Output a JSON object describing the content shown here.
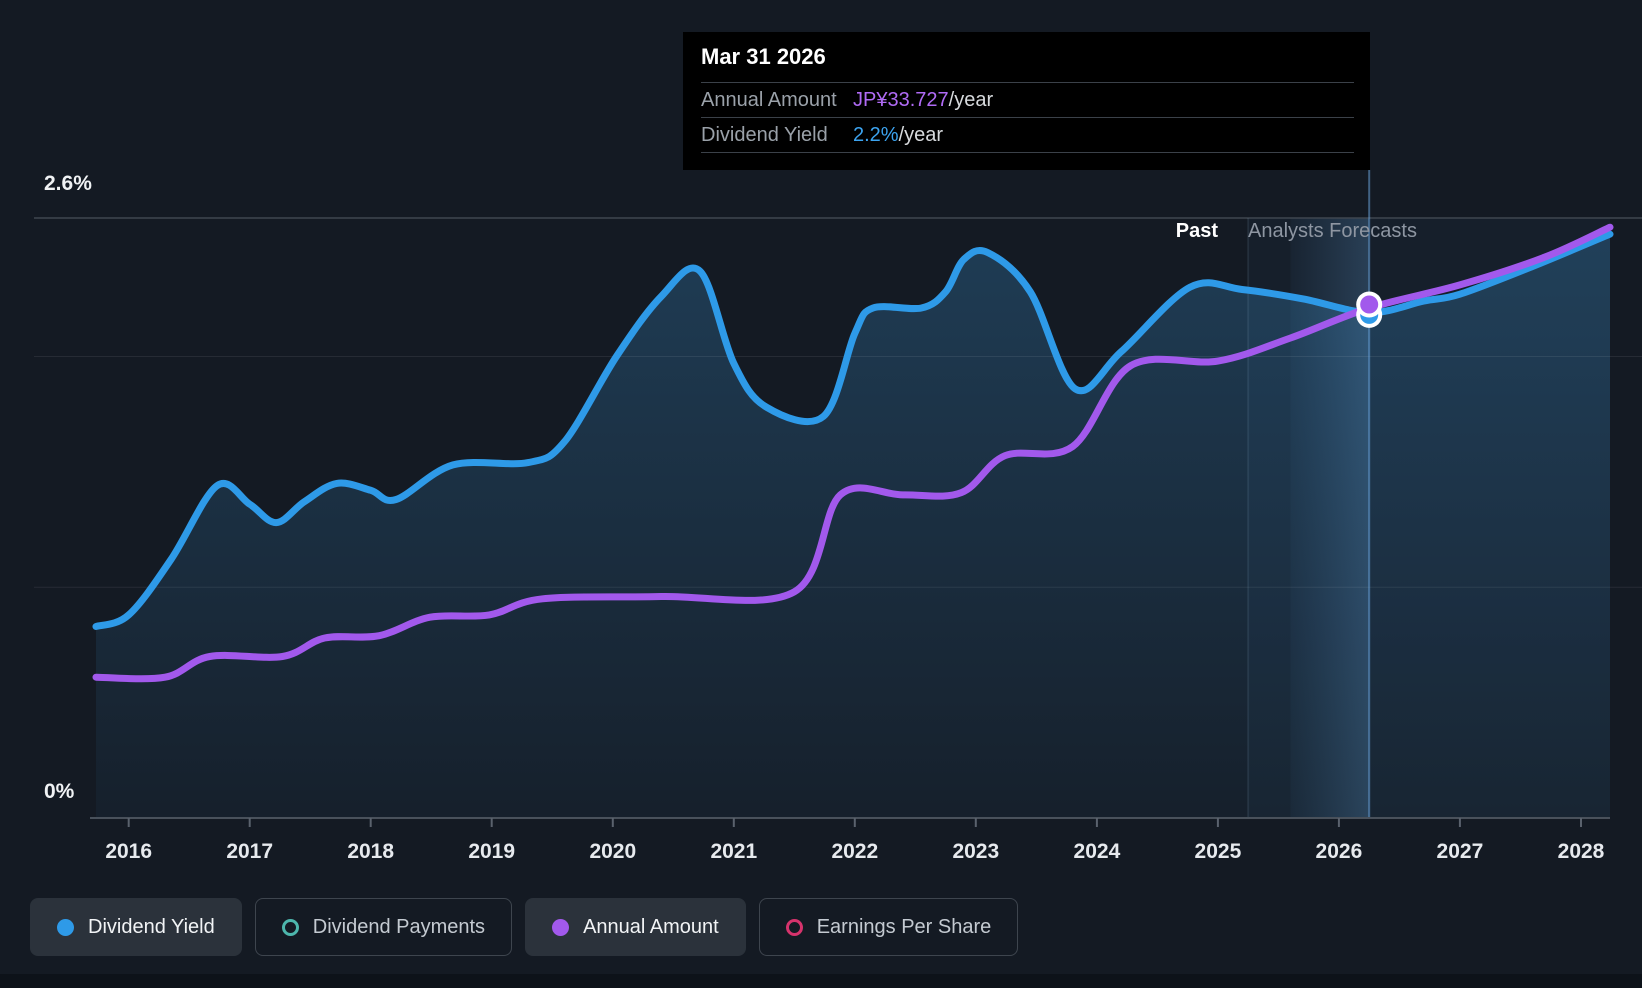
{
  "tooltip": {
    "title": "Mar 31 2026",
    "rows": [
      {
        "label": "Annual Amount",
        "value": "JP¥33.727",
        "suffix": "/year",
        "color": "#b06bf5"
      },
      {
        "label": "Dividend Yield",
        "value": "2.2%",
        "suffix": "/year",
        "color": "#3ca3ef"
      }
    ]
  },
  "annotations": {
    "past_label": "Past",
    "forecast_label": "Analysts Forecasts"
  },
  "legend": [
    {
      "label": "Dividend Yield",
      "color": "#2e9ae8",
      "marker": "filled",
      "active": true
    },
    {
      "label": "Dividend Payments",
      "color": "#4db6ac",
      "marker": "outline",
      "active": false
    },
    {
      "label": "Annual Amount",
      "color": "#a259ec",
      "marker": "filled",
      "active": true
    },
    {
      "label": "Earnings Per Share",
      "color": "#d6336c",
      "marker": "outline",
      "active": false
    }
  ],
  "colors": {
    "background": "#141a23",
    "dividend_yield_line": "#2e9ae8",
    "annual_amount_line": "#a259ec",
    "tooltip_bg": "#000000",
    "grid": "#3f4650"
  },
  "chart_data": {
    "type": "area",
    "title": "Dividend yield history and forecast",
    "xlim": [
      2015.73,
      2028.24
    ],
    "ylim": [
      0,
      2.6
    ],
    "xticks": [
      2016,
      2017,
      2018,
      2019,
      2020,
      2021,
      2022,
      2023,
      2024,
      2025,
      2026,
      2027,
      2028
    ],
    "ytick_labels": [
      {
        "value": 2.6,
        "label": "2.6%"
      },
      {
        "value": 0,
        "label": "0%"
      }
    ],
    "minor_gridlines": [
      1,
      2
    ],
    "past_forecast_divider_x": 2025.25,
    "crosshair_x": 2026.25,
    "hover_band_x": [
      2025.6,
      2026.25
    ],
    "grid": true,
    "legend_position": "bottom-left",
    "series": [
      {
        "name": "Dividend Yield",
        "unit": "%",
        "color": "#2e9ae8",
        "fill": true,
        "points": [
          [
            2015.73,
            0.83
          ],
          [
            2016.0,
            0.88
          ],
          [
            2016.35,
            1.12
          ],
          [
            2016.73,
            1.44
          ],
          [
            2017.0,
            1.36
          ],
          [
            2017.22,
            1.28
          ],
          [
            2017.45,
            1.37
          ],
          [
            2017.72,
            1.45
          ],
          [
            2018.0,
            1.42
          ],
          [
            2018.21,
            1.38
          ],
          [
            2018.68,
            1.53
          ],
          [
            2019.3,
            1.54
          ],
          [
            2019.6,
            1.63
          ],
          [
            2020.03,
            2.0
          ],
          [
            2020.4,
            2.26
          ],
          [
            2020.72,
            2.37
          ],
          [
            2021.0,
            1.97
          ],
          [
            2021.27,
            1.78
          ],
          [
            2021.74,
            1.74
          ],
          [
            2022.0,
            2.1
          ],
          [
            2022.15,
            2.21
          ],
          [
            2022.55,
            2.21
          ],
          [
            2022.75,
            2.28
          ],
          [
            2022.9,
            2.42
          ],
          [
            2023.1,
            2.45
          ],
          [
            2023.45,
            2.28
          ],
          [
            2023.82,
            1.86
          ],
          [
            2024.2,
            2.02
          ],
          [
            2024.77,
            2.3
          ],
          [
            2025.2,
            2.29
          ],
          [
            2025.7,
            2.25
          ],
          [
            2026.25,
            2.19
          ],
          [
            2026.7,
            2.24
          ],
          [
            2027.0,
            2.27
          ],
          [
            2027.6,
            2.39
          ],
          [
            2028.24,
            2.53
          ]
        ]
      },
      {
        "name": "Annual Amount",
        "unit": "display-scale (JP¥ axis hidden; value at Mar 31 2026 = JP¥33.727/year)",
        "color": "#a259ec",
        "fill": false,
        "points": [
          [
            2015.73,
            0.61
          ],
          [
            2016.3,
            0.61
          ],
          [
            2016.67,
            0.7
          ],
          [
            2017.27,
            0.7
          ],
          [
            2017.62,
            0.78
          ],
          [
            2018.07,
            0.79
          ],
          [
            2018.49,
            0.87
          ],
          [
            2018.98,
            0.88
          ],
          [
            2019.42,
            0.95
          ],
          [
            2020.4,
            0.96
          ],
          [
            2021.5,
            0.98
          ],
          [
            2021.88,
            1.4
          ],
          [
            2022.4,
            1.4
          ],
          [
            2022.88,
            1.41
          ],
          [
            2023.24,
            1.57
          ],
          [
            2023.8,
            1.61
          ],
          [
            2024.28,
            1.96
          ],
          [
            2025.0,
            1.98
          ],
          [
            2025.6,
            2.08
          ],
          [
            2026.25,
            2.21
          ],
          [
            2027.0,
            2.31
          ],
          [
            2027.7,
            2.43
          ],
          [
            2028.24,
            2.56
          ]
        ]
      }
    ],
    "markers": [
      {
        "x": 2026.25,
        "y": 2.18,
        "color": "#2e9ae8",
        "series": "Dividend Yield"
      },
      {
        "x": 2026.25,
        "y": 2.225,
        "color": "#a259ec",
        "series": "Annual Amount"
      }
    ]
  }
}
